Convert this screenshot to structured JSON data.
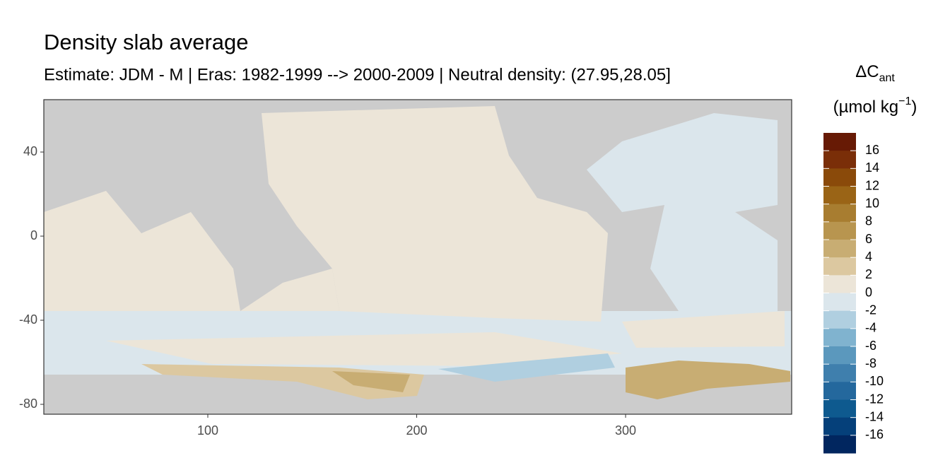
{
  "chart_data": {
    "type": "map",
    "title": "Density slab average",
    "subtitle": "Estimate: JDM - M | Eras: 1982-1999 --> 2000-2009 | Neutral density: (27.95,28.05]",
    "xlim": [
      21.5,
      379.5
    ],
    "xticks": [
      100,
      200,
      300
    ],
    "ylim": [
      -84.7,
      64.9
    ],
    "yticks": [
      40,
      0,
      -40,
      -80
    ],
    "land_color": "#cccccc",
    "legend": {
      "title": "ΔC",
      "title_sub": "ant",
      "unit_pre": "(µmol kg",
      "unit_sup": "−1",
      "unit_post": ")",
      "limits": [
        -18,
        18
      ],
      "labels": [
        16,
        14,
        12,
        10,
        8,
        6,
        4,
        2,
        0,
        -2,
        -4,
        -6,
        -8,
        -10,
        -12,
        -14,
        -16
      ],
      "colors": [
        "#671a05",
        "#7a2e08",
        "#8a4a0a",
        "#9a6416",
        "#a87d30",
        "#b8954f",
        "#c8ad73",
        "#dcc8a0",
        "#ece5d8",
        "#dbe6ec",
        "#b0cfe0",
        "#80b3cf",
        "#5b98bd",
        "#3f7fad",
        "#24689d",
        "#0e5a8f",
        "#05407a",
        "#01265f"
      ]
    }
  }
}
